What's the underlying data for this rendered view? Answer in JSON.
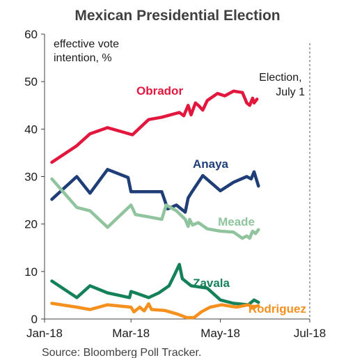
{
  "chart_data": {
    "type": "line",
    "title": "Mexican Presidential Election",
    "subtitle": "effective vote intention, %",
    "subtitle_lines": [
      "effective vote",
      "intention, %"
    ],
    "source": "Source: Bloomberg Poll Tracker.",
    "ylim": [
      0,
      60
    ],
    "y_ticks": [
      "0",
      "10",
      "20",
      "30",
      "40",
      "50",
      "60"
    ],
    "x_ticks": [
      {
        "label": "Jan-18",
        "date": "2018-01-01"
      },
      {
        "label": "Mar-18",
        "date": "2018-03-01"
      },
      {
        "label": "May-18",
        "date": "2018-05-01"
      },
      {
        "label": "Jul-18",
        "date": "2018-07-01"
      }
    ],
    "xlim": [
      "2018-01-01",
      "2018-07-01"
    ],
    "grid": false,
    "annotation": {
      "lines": [
        "Election,",
        "July 1"
      ],
      "date": "2018-07-01"
    },
    "series": [
      {
        "name": "Obrador",
        "color": "#e3173d",
        "points": [
          [
            "2018-01-06",
            33.0
          ],
          [
            "2018-01-23",
            36.5
          ],
          [
            "2018-02-01",
            39.0
          ],
          [
            "2018-02-13",
            40.3
          ],
          [
            "2018-03-02",
            38.8
          ],
          [
            "2018-03-13",
            42.0
          ],
          [
            "2018-03-22",
            42.5
          ],
          [
            "2018-04-03",
            43.5
          ],
          [
            "2018-04-06",
            42.8
          ],
          [
            "2018-04-09",
            45.0
          ],
          [
            "2018-04-11",
            43.0
          ],
          [
            "2018-04-14",
            45.5
          ],
          [
            "2018-04-16",
            45.0
          ],
          [
            "2018-04-19",
            44.0
          ],
          [
            "2018-04-22",
            46.0
          ],
          [
            "2018-04-29",
            47.5
          ],
          [
            "2018-05-04",
            47.0
          ],
          [
            "2018-05-10",
            48.0
          ],
          [
            "2018-05-16",
            47.7
          ],
          [
            "2018-05-19",
            45.5
          ],
          [
            "2018-05-21",
            45.0
          ],
          [
            "2018-05-23",
            46.5
          ],
          [
            "2018-05-24",
            45.5
          ],
          [
            "2018-05-26",
            46.3
          ]
        ]
      },
      {
        "name": "Anaya",
        "color": "#1f3e78",
        "points": [
          [
            "2018-01-06",
            25.2
          ],
          [
            "2018-01-23",
            30.0
          ],
          [
            "2018-02-01",
            26.5
          ],
          [
            "2018-02-13",
            31.5
          ],
          [
            "2018-02-27",
            29.8
          ],
          [
            "2018-03-01",
            26.8
          ],
          [
            "2018-03-13",
            26.8
          ],
          [
            "2018-03-22",
            26.8
          ],
          [
            "2018-03-26",
            23.2
          ],
          [
            "2018-04-01",
            24.0
          ],
          [
            "2018-04-07",
            22.5
          ],
          [
            "2018-04-09",
            25.5
          ],
          [
            "2018-04-11",
            26.5
          ],
          [
            "2018-04-19",
            30.2
          ],
          [
            "2018-05-01",
            27.0
          ],
          [
            "2018-05-10",
            28.8
          ],
          [
            "2018-05-19",
            30.0
          ],
          [
            "2018-05-22",
            29.5
          ],
          [
            "2018-05-24",
            31.0
          ],
          [
            "2018-05-27",
            28.0
          ]
        ]
      },
      {
        "name": "Meade",
        "color": "#90c49e",
        "points": [
          [
            "2018-01-06",
            29.5
          ],
          [
            "2018-01-23",
            23.5
          ],
          [
            "2018-02-01",
            22.8
          ],
          [
            "2018-02-13",
            19.3
          ],
          [
            "2018-03-01",
            24.0
          ],
          [
            "2018-03-04",
            22.0
          ],
          [
            "2018-03-13",
            21.5
          ],
          [
            "2018-03-22",
            21.0
          ],
          [
            "2018-03-25",
            24.0
          ],
          [
            "2018-04-01",
            22.8
          ],
          [
            "2018-04-07",
            21.0
          ],
          [
            "2018-04-09",
            19.5
          ],
          [
            "2018-04-10",
            21.0
          ],
          [
            "2018-04-12",
            19.8
          ],
          [
            "2018-04-16",
            20.3
          ],
          [
            "2018-04-22",
            19.0
          ],
          [
            "2018-05-01",
            18.5
          ],
          [
            "2018-05-10",
            18.3
          ],
          [
            "2018-05-16",
            17.0
          ],
          [
            "2018-05-19",
            17.5
          ],
          [
            "2018-05-21",
            17.0
          ],
          [
            "2018-05-23",
            18.5
          ],
          [
            "2018-05-25",
            18.0
          ],
          [
            "2018-05-27",
            18.8
          ]
        ]
      },
      {
        "name": "Zavala",
        "color": "#158159",
        "points": [
          [
            "2018-01-06",
            8.0
          ],
          [
            "2018-01-23",
            4.5
          ],
          [
            "2018-02-01",
            7.0
          ],
          [
            "2018-02-13",
            5.5
          ],
          [
            "2018-02-28",
            4.5
          ],
          [
            "2018-03-01",
            5.8
          ],
          [
            "2018-03-04",
            5.5
          ],
          [
            "2018-03-13",
            4.5
          ],
          [
            "2018-03-20",
            5.5
          ],
          [
            "2018-03-27",
            7.0
          ],
          [
            "2018-03-31",
            9.5
          ],
          [
            "2018-04-03",
            11.5
          ],
          [
            "2018-04-05",
            8.5
          ],
          [
            "2018-04-11",
            7.0
          ],
          [
            "2018-04-22",
            6.5
          ],
          [
            "2018-05-01",
            4.0
          ],
          [
            "2018-05-10",
            3.3
          ],
          [
            "2018-05-20",
            3.0
          ],
          [
            "2018-05-24",
            4.0
          ],
          [
            "2018-05-27",
            3.5
          ]
        ]
      },
      {
        "name": "Rodriguez",
        "color": "#f5901e",
        "points": [
          [
            "2018-01-06",
            3.3
          ],
          [
            "2018-01-23",
            2.5
          ],
          [
            "2018-02-01",
            2.0
          ],
          [
            "2018-02-13",
            3.0
          ],
          [
            "2018-03-01",
            2.5
          ],
          [
            "2018-03-03",
            1.5
          ],
          [
            "2018-03-07",
            2.5
          ],
          [
            "2018-03-10",
            1.7
          ],
          [
            "2018-03-13",
            3.2
          ],
          [
            "2018-03-15",
            2.0
          ],
          [
            "2018-03-24",
            1.8
          ],
          [
            "2018-04-02",
            1.0
          ],
          [
            "2018-04-08",
            0.3
          ],
          [
            "2018-04-13",
            0.3
          ],
          [
            "2018-04-18",
            1.5
          ],
          [
            "2018-04-24",
            2.5
          ],
          [
            "2018-05-02",
            3.0
          ],
          [
            "2018-05-12",
            2.5
          ],
          [
            "2018-05-20",
            3.0
          ],
          [
            "2018-05-23",
            2.5
          ],
          [
            "2018-05-27",
            2.8
          ]
        ]
      }
    ]
  }
}
